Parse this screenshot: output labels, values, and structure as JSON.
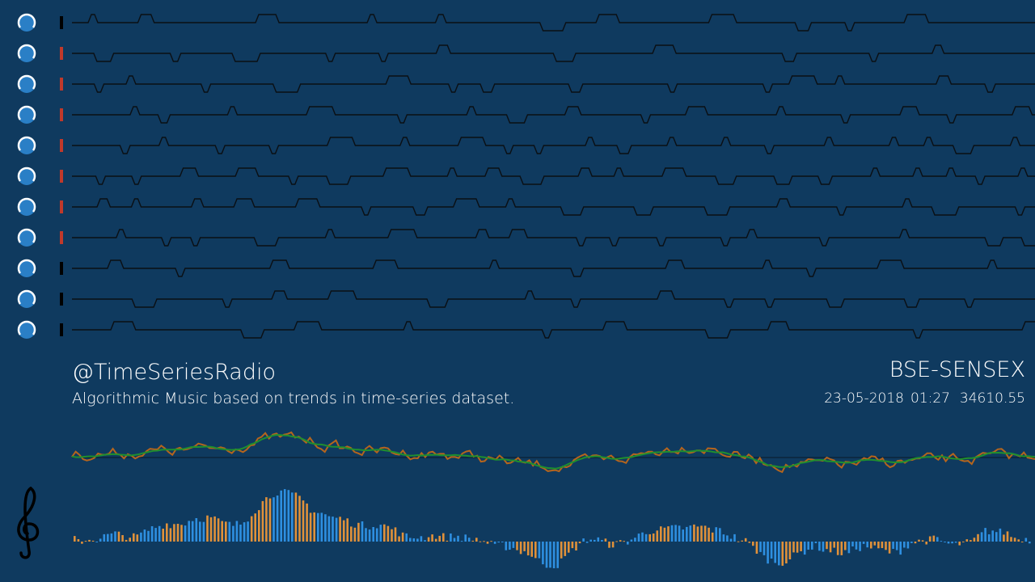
{
  "header": {
    "handle": "@TimeSeriesRadio",
    "subtitle": "Algorithmic Music based on trends in time-series dataset."
  },
  "dataset": {
    "name": "BSE-SENSEX",
    "date": "23-05-2018",
    "time": "01:27",
    "value": 34610.55
  }
}
